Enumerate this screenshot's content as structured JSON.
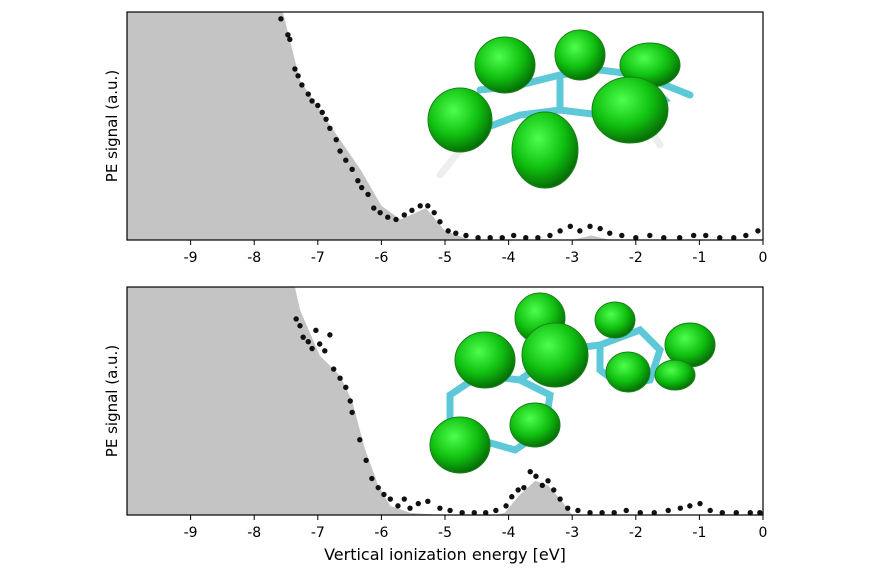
{
  "chart_data": [
    {
      "type": "scatter",
      "ylabel": "PE signal (a.u.)",
      "xlim": [
        -10,
        0
      ],
      "ylim": [
        0,
        1
      ],
      "xticks": [
        -9,
        -8,
        -7,
        -6,
        -5,
        -4,
        -3,
        -2,
        -1,
        0
      ],
      "area_color": "#c4c4c4",
      "color": "#111111",
      "area_x": [
        -10,
        -7.55,
        -7.28,
        -6.8,
        -6.33,
        -6.0,
        -5.7,
        -5.3,
        -5.0,
        -4.6,
        -3.0,
        -2.7,
        -2.4,
        0
      ],
      "area_values": [
        1.0,
        1.0,
        0.7,
        0.5,
        0.31,
        0.15,
        0.09,
        0.14,
        0.04,
        0.0,
        0.0,
        0.02,
        0.0,
        0.0
      ],
      "x": [
        -7.58,
        -7.47,
        -7.44,
        -7.36,
        -7.31,
        -7.25,
        -7.15,
        -7.09,
        -7.0,
        -6.93,
        -6.87,
        -6.81,
        -6.71,
        -6.65,
        -6.56,
        -6.46,
        -6.37,
        -6.31,
        -6.21,
        -6.12,
        -6.02,
        -5.9,
        -5.77,
        -5.64,
        -5.52,
        -5.39,
        -5.27,
        -5.17,
        -5.08,
        -4.95,
        -4.83,
        -4.67,
        -4.48,
        -4.29,
        -4.1,
        -3.92,
        -3.73,
        -3.54,
        -3.35,
        -3.19,
        -3.03,
        -2.88,
        -2.72,
        -2.56,
        -2.41,
        -2.22,
        -2.0,
        -1.78,
        -1.56,
        -1.31,
        -1.09,
        -0.9,
        -0.68,
        -0.46,
        -0.27,
        -0.08
      ],
      "values": [
        0.97,
        0.9,
        0.88,
        0.75,
        0.72,
        0.68,
        0.64,
        0.61,
        0.59,
        0.56,
        0.53,
        0.49,
        0.44,
        0.39,
        0.35,
        0.31,
        0.26,
        0.23,
        0.2,
        0.14,
        0.12,
        0.1,
        0.09,
        0.11,
        0.13,
        0.15,
        0.15,
        0.12,
        0.08,
        0.04,
        0.03,
        0.02,
        0.01,
        0.01,
        0.01,
        0.02,
        0.01,
        0.01,
        0.02,
        0.04,
        0.06,
        0.04,
        0.06,
        0.05,
        0.03,
        0.02,
        0.01,
        0.02,
        0.01,
        0.01,
        0.02,
        0.02,
        0.01,
        0.01,
        0.02,
        0.04
      ]
    },
    {
      "type": "scatter",
      "ylabel": "PE signal (a.u.)",
      "xlabel": "Vertical ionization energy [eV]",
      "xlim": [
        -10,
        0
      ],
      "ylim": [
        0,
        1
      ],
      "xticks": [
        -9,
        -8,
        -7,
        -6,
        -5,
        -4,
        -3,
        -2,
        -1,
        0
      ],
      "area_color": "#c4c4c4",
      "color": "#111111",
      "area_x": [
        -10,
        -7.36,
        -7.28,
        -6.97,
        -6.65,
        -6.46,
        -6.26,
        -6.05,
        -5.86,
        -5.55,
        -5.08,
        -4.2,
        -4.06,
        -3.82,
        -3.58,
        -3.38,
        -3.19,
        -3.0,
        0
      ],
      "area_values": [
        1.0,
        1.0,
        0.9,
        0.7,
        0.61,
        0.5,
        0.29,
        0.13,
        0.04,
        0.01,
        0.0,
        0.0,
        0.01,
        0.09,
        0.15,
        0.13,
        0.07,
        0.0,
        0.0
      ],
      "x": [
        -7.34,
        -7.28,
        -7.23,
        -7.15,
        -7.09,
        -7.03,
        -6.97,
        -6.89,
        -6.81,
        -6.75,
        -6.65,
        -6.56,
        -6.49,
        -6.46,
        -6.34,
        -6.24,
        -6.15,
        -6.05,
        -5.96,
        -5.86,
        -5.74,
        -5.64,
        -5.55,
        -5.42,
        -5.27,
        -5.08,
        -4.92,
        -4.73,
        -4.54,
        -4.36,
        -4.2,
        -4.04,
        -3.95,
        -3.85,
        -3.76,
        -3.66,
        -3.57,
        -3.47,
        -3.38,
        -3.29,
        -3.19,
        -3.07,
        -2.91,
        -2.72,
        -2.53,
        -2.34,
        -2.15,
        -1.93,
        -1.71,
        -1.49,
        -1.3,
        -1.15,
        -0.99,
        -0.83,
        -0.64,
        -0.42,
        -0.2,
        -0.05
      ],
      "values": [
        0.86,
        0.83,
        0.78,
        0.76,
        0.73,
        0.81,
        0.75,
        0.72,
        0.79,
        0.64,
        0.6,
        0.56,
        0.5,
        0.45,
        0.33,
        0.24,
        0.16,
        0.12,
        0.09,
        0.07,
        0.04,
        0.07,
        0.03,
        0.05,
        0.06,
        0.03,
        0.02,
        0.01,
        0.01,
        0.01,
        0.02,
        0.04,
        0.08,
        0.11,
        0.12,
        0.19,
        0.17,
        0.13,
        0.15,
        0.11,
        0.07,
        0.03,
        0.02,
        0.01,
        0.01,
        0.01,
        0.02,
        0.01,
        0.01,
        0.02,
        0.03,
        0.04,
        0.05,
        0.02,
        0.01,
        0.01,
        0.01,
        0.01
      ]
    }
  ]
}
